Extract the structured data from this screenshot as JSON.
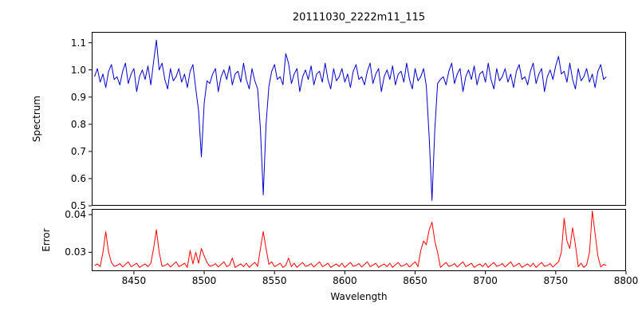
{
  "chart_data": {
    "type": "line",
    "title": "20111030_2222m11_115",
    "xlabel": "Wavelength",
    "x_start": 8422,
    "x_step": 2,
    "n_points": 183,
    "xlim": [
      8420,
      8800
    ],
    "xticks": [
      8450,
      8500,
      8550,
      8600,
      8650,
      8700,
      8750,
      8800
    ],
    "xtick_labels": [
      "8450",
      "8500",
      "8550",
      "8600",
      "8650",
      "8700",
      "8750",
      "8800"
    ],
    "grid": false,
    "legend": "none",
    "panels": [
      {
        "ylabel": "Spectrum",
        "ylim": [
          0.5,
          1.14
        ],
        "yticks": [
          0.5,
          0.6,
          0.7,
          0.8,
          0.9,
          1.0,
          1.1
        ],
        "ytick_labels": [
          "0.5",
          "0.6",
          "0.7",
          "0.8",
          "0.9",
          "1.0",
          "1.1"
        ],
        "features": {
          "absorption_lines": [
            {
              "wavelength": 8498,
              "depth": 0.68
            },
            {
              "wavelength": 8542,
              "depth": 0.54
            },
            {
              "wavelength": 8662,
              "depth": 0.52
            }
          ],
          "continuum_level": 1.0
        },
        "series": [
          {
            "name": "spectrum",
            "color": "#0000cd",
            "values": [
              0.975,
              1.005,
              0.955,
              0.985,
              0.935,
              0.995,
              1.02,
              0.965,
              0.975,
              0.945,
              0.995,
              1.025,
              0.95,
              0.985,
              1.005,
              0.92,
              0.975,
              1.0,
              0.965,
              1.015,
              0.945,
              1.03,
              1.11,
              1.0,
              1.025,
              0.965,
              0.93,
              1.005,
              0.96,
              0.975,
              1.005,
              0.955,
              0.985,
              0.935,
              0.995,
              1.02,
              0.93,
              0.85,
              0.68,
              0.88,
              0.96,
              0.95,
              0.985,
              1.005,
              0.92,
              0.975,
              1.0,
              0.965,
              1.015,
              0.945,
              0.985,
              0.995,
              0.955,
              1.025,
              0.965,
              0.93,
              1.005,
              0.96,
              0.93,
              0.78,
              0.54,
              0.8,
              0.94,
              0.995,
              1.02,
              0.965,
              0.975,
              0.945,
              1.06,
              1.025,
              0.95,
              0.985,
              1.005,
              0.92,
              0.975,
              1.0,
              0.965,
              1.015,
              0.945,
              0.985,
              0.995,
              0.955,
              1.025,
              0.965,
              0.93,
              1.005,
              0.96,
              0.975,
              1.005,
              0.955,
              0.985,
              0.935,
              0.995,
              1.02,
              0.965,
              0.975,
              0.945,
              0.995,
              1.025,
              0.95,
              0.985,
              1.005,
              0.92,
              0.975,
              1.0,
              0.965,
              1.015,
              0.945,
              0.985,
              0.995,
              0.955,
              1.025,
              0.965,
              0.93,
              1.005,
              0.96,
              0.975,
              1.005,
              0.94,
              0.75,
              0.52,
              0.78,
              0.95,
              0.965,
              0.975,
              0.945,
              0.995,
              1.025,
              0.95,
              0.985,
              1.005,
              0.92,
              0.975,
              1.0,
              0.965,
              1.015,
              0.945,
              0.985,
              0.995,
              0.955,
              1.025,
              0.965,
              0.93,
              1.005,
              0.96,
              0.975,
              1.005,
              0.955,
              0.985,
              0.935,
              0.995,
              1.02,
              0.965,
              0.975,
              0.945,
              0.995,
              1.025,
              0.95,
              0.985,
              1.005,
              0.92,
              0.975,
              1.0,
              0.965,
              1.015,
              1.05,
              0.985,
              0.995,
              0.955,
              1.025,
              0.965,
              0.93,
              1.005,
              0.96,
              0.975,
              1.005,
              0.955,
              0.985,
              0.935,
              0.995,
              1.02,
              0.965,
              0.975
            ]
          }
        ]
      },
      {
        "ylabel": "Error",
        "ylim": [
          0.025,
          0.0415
        ],
        "yticks": [
          0.03,
          0.04
        ],
        "ytick_labels": [
          "0.03",
          "0.04"
        ],
        "features": {
          "baseline_level": 0.0265,
          "peaks": [
            {
              "wavelength": 8430,
              "value": 0.0355
            },
            {
              "wavelength": 8466,
              "value": 0.036
            },
            {
              "wavelength": 8542,
              "value": 0.0355
            },
            {
              "wavelength": 8662,
              "value": 0.038
            },
            {
              "wavelength": 8756,
              "value": 0.039
            },
            {
              "wavelength": 8762,
              "value": 0.0365
            },
            {
              "wavelength": 8776,
              "value": 0.041
            }
          ]
        },
        "series": [
          {
            "name": "error",
            "color": "#ff0000",
            "values": [
              0.0265,
              0.0269,
              0.0262,
              0.03,
              0.0355,
              0.03,
              0.0273,
              0.0263,
              0.0265,
              0.027,
              0.0261,
              0.0268,
              0.0275,
              0.0262,
              0.0266,
              0.0271,
              0.026,
              0.0265,
              0.0269,
              0.0262,
              0.0271,
              0.031,
              0.036,
              0.03,
              0.0263,
              0.0265,
              0.027,
              0.0261,
              0.0268,
              0.0275,
              0.0262,
              0.0266,
              0.0271,
              0.026,
              0.0305,
              0.0269,
              0.03,
              0.0271,
              0.031,
              0.029,
              0.0273,
              0.0263,
              0.0265,
              0.027,
              0.0261,
              0.0268,
              0.0275,
              0.0262,
              0.0266,
              0.0285,
              0.026,
              0.0265,
              0.0269,
              0.0262,
              0.0271,
              0.026,
              0.0267,
              0.0273,
              0.0263,
              0.031,
              0.0355,
              0.031,
              0.0268,
              0.0275,
              0.0262,
              0.0266,
              0.0271,
              0.026,
              0.0265,
              0.0285,
              0.0262,
              0.0271,
              0.026,
              0.0267,
              0.0273,
              0.0263,
              0.0265,
              0.027,
              0.0261,
              0.0268,
              0.0275,
              0.0262,
              0.0266,
              0.0271,
              0.026,
              0.0265,
              0.0269,
              0.0262,
              0.0271,
              0.026,
              0.0267,
              0.0273,
              0.0263,
              0.0265,
              0.027,
              0.0261,
              0.0268,
              0.0275,
              0.0262,
              0.0266,
              0.0271,
              0.026,
              0.0265,
              0.0269,
              0.0262,
              0.0271,
              0.026,
              0.0267,
              0.0273,
              0.0263,
              0.0265,
              0.027,
              0.0261,
              0.0268,
              0.0275,
              0.0262,
              0.0305,
              0.033,
              0.032,
              0.036,
              0.038,
              0.033,
              0.03,
              0.026,
              0.0267,
              0.0273,
              0.0263,
              0.0265,
              0.027,
              0.0261,
              0.0268,
              0.0275,
              0.0262,
              0.0266,
              0.0271,
              0.026,
              0.0265,
              0.0269,
              0.0262,
              0.0271,
              0.026,
              0.0267,
              0.0273,
              0.0263,
              0.0265,
              0.027,
              0.0261,
              0.0268,
              0.0275,
              0.0262,
              0.0266,
              0.0271,
              0.026,
              0.0265,
              0.0269,
              0.0262,
              0.0271,
              0.026,
              0.0267,
              0.0273,
              0.0263,
              0.0265,
              0.027,
              0.0261,
              0.0268,
              0.0275,
              0.03,
              0.039,
              0.033,
              0.031,
              0.0365,
              0.032,
              0.0262,
              0.0271,
              0.026,
              0.0267,
              0.03,
              0.041,
              0.035,
              0.029,
              0.0261,
              0.0268,
              0.0265
            ]
          }
        ]
      }
    ]
  }
}
